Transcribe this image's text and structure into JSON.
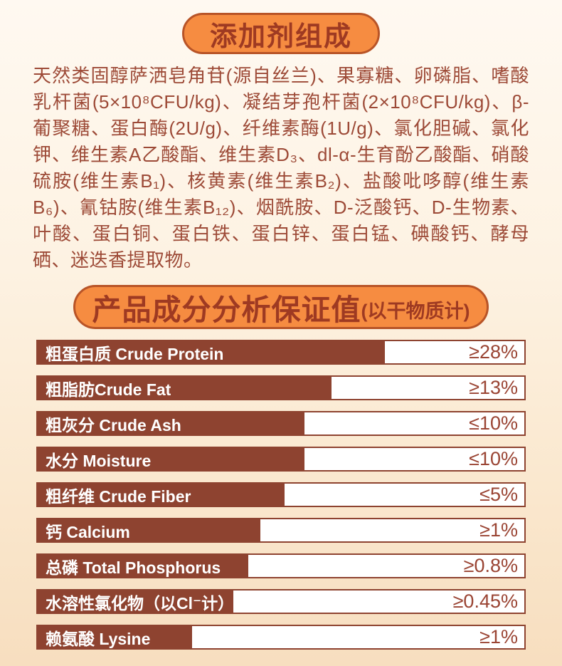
{
  "colors": {
    "background_top": "#FFF9F1",
    "background_bottom": "#F7DEBF",
    "pill_orange": "#F68C41",
    "pill_border": "#B85427",
    "heading_text": "#9E3A22",
    "body_text": "#9D4A37",
    "bar_brown": "#8E4330",
    "value_text": "#9A4433"
  },
  "additives": {
    "title": "添加剂组成",
    "body": "天然类固醇萨洒皂角苷(源自丝兰)、果寡糖、卵磷脂、嗜酸乳杆菌(5×10⁸CFU/kg)、凝结芽孢杆菌(2×10⁸CFU/kg)、β-葡聚糖、蛋白酶(2U/g)、纤维素酶(1U/g)、氯化胆碱、氯化钾、维生素A乙酸酯、维生素D₃、dl-α-生育酚乙酸酯、硝酸硫胺(维生素B₁)、核黄素(维生素B₂)、盐酸吡哆醇(维生素B₆)、氰钴胺(维生素B₁₂)、烟酰胺、D-泛酸钙、D-生物素、叶酸、蛋白铜、蛋白铁、蛋白锌、蛋白锰、碘酸钙、酵母硒、迷迭香提取物。"
  },
  "analysis": {
    "title": "产品成分分析保证值",
    "subtitle": "(以干物质计)",
    "rows": [
      {
        "label": "粗蛋白质 Crude Protein",
        "value": "≥28%",
        "bar_pct": 71
      },
      {
        "label": "粗脂肪Crude Fat",
        "value": "≥13%",
        "bar_pct": 60
      },
      {
        "label": "粗灰分 Crude Ash",
        "value": "≤10%",
        "bar_pct": 54.5
      },
      {
        "label": "水分 Moisture",
        "value": "≤10%",
        "bar_pct": 54.5
      },
      {
        "label": "粗纤维 Crude Fiber",
        "value": "≤5%",
        "bar_pct": 50.5
      },
      {
        "label": "钙 Calcium",
        "value": "≥1%",
        "bar_pct": 45.5
      },
      {
        "label": "总磷 Total Phosphorus",
        "value": "≥0.8%",
        "bar_pct": 43
      },
      {
        "label": "水溶性氯化物（以Cl⁻计）",
        "value": "≥0.45%",
        "bar_pct": 40
      },
      {
        "label": "赖氨酸 Lysine",
        "value": "≥1%",
        "bar_pct": 31.5
      }
    ]
  }
}
